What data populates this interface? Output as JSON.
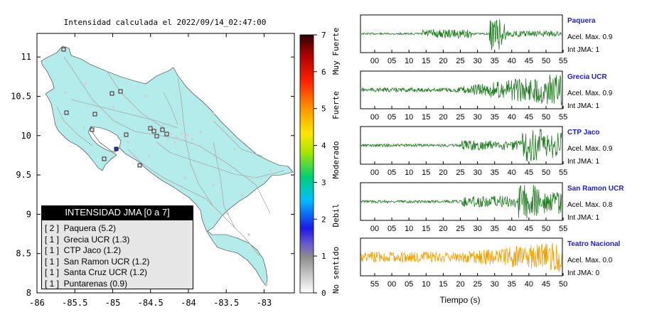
{
  "map": {
    "title": "Intensidad calculada el 2022/09/14_02:47:00",
    "xticks": [
      "-86",
      "-85.5",
      "-85",
      "-84.5",
      "-84",
      "-83.5",
      "-83"
    ],
    "yticks": [
      "8",
      "8.5",
      "9",
      "9.5",
      "10",
      "10.5",
      "11"
    ]
  },
  "colorbar": {
    "ticks": [
      "0",
      "1",
      "2",
      "3",
      "4",
      "5",
      "6",
      "7"
    ],
    "labels": [
      "No sentido",
      "Debil",
      "Moderado",
      "Fuerte",
      "Muy Fuerte"
    ]
  },
  "legend": {
    "title": "INTENSIDAD JMA [0 a 7]",
    "items": [
      "[ 2 ]  Paquera (5.2)",
      "[ 1 ]  Grecia UCR (1.3)",
      "[ 1 ]  CTP Jaco (1.2)",
      "[ 1 ]  San Ramon UCR (1.2)",
      "[ 1 ]  Santa Cruz UCR (1.2)",
      "[ 1 ]  Puntarenas (0.9)"
    ]
  },
  "traces": {
    "xlabel": "Tiempo (s)",
    "ticks_a": [
      "00",
      "05",
      "10",
      "15",
      "20",
      "25",
      "30",
      "35",
      "40",
      "45",
      "50",
      "55"
    ],
    "ticks_b": [
      "55",
      "00",
      "05",
      "10",
      "15",
      "20",
      "25",
      "30",
      "35",
      "40",
      "45",
      "50"
    ],
    "stations": [
      {
        "name": "Paquera",
        "acel": "Acel. Max. 0.9",
        "int": "Int JMA: 1",
        "color": "#1e7b1e"
      },
      {
        "name": "Grecia UCR",
        "acel": "Acel. Max. 0.9",
        "int": "Int JMA: 1",
        "color": "#1e7b1e"
      },
      {
        "name": "CTP Jaco",
        "acel": "Acel. Max. 0.9",
        "int": "Int JMA: 1",
        "color": "#1e7b1e"
      },
      {
        "name": "San Ramon UCR",
        "acel": "Acel. Max. 0.8",
        "int": "Int JMA: 1",
        "color": "#1e7b1e"
      },
      {
        "name": "Teatro Nacional",
        "acel": "Acel. Max. 0.0",
        "int": "Int JMA: 0",
        "color": "#f2a000"
      }
    ]
  },
  "chart_data": {
    "type": "scatter",
    "title": "Intensidad calculada el 2022/09/14_02:47:00",
    "xlim": [
      -86,
      -82.6
    ],
    "ylim": [
      8,
      11.3
    ],
    "colorbar_range": [
      0,
      7
    ],
    "stations": [
      {
        "name": "Paquera",
        "lon": -84.97,
        "lat": 9.82,
        "jma": 2
      },
      {
        "name": "Grecia UCR",
        "lon": -84.31,
        "lat": 10.07,
        "jma": 1
      },
      {
        "name": "CTP Jaco",
        "lon": -84.63,
        "lat": 9.62,
        "jma": 1
      },
      {
        "name": "San Ramon UCR",
        "lon": -84.47,
        "lat": 10.09,
        "jma": 1
      },
      {
        "name": "Santa Cruz UCR",
        "lon": -85.58,
        "lat": 10.28,
        "jma": 1
      },
      {
        "name": "Puntarenas",
        "lon": -84.84,
        "lat": 9.98,
        "jma": 1
      }
    ]
  }
}
